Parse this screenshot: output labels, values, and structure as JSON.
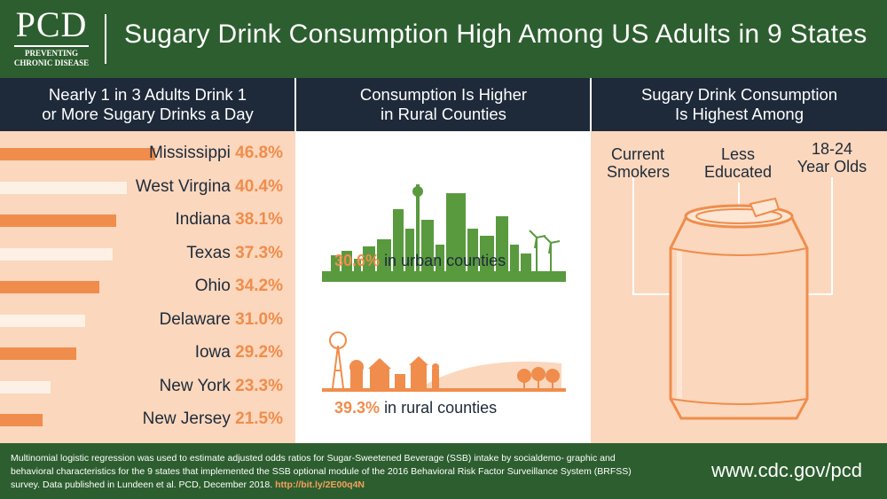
{
  "header": {
    "logo_big": "PCD",
    "logo_line1": "PREVENTING",
    "logo_line2": "CHRONIC DISEASE",
    "title": "Sugary Drink Consumption High Among US Adults in 9 States"
  },
  "columns": {
    "left_line1": "Nearly 1 in 3 Adults Drink 1",
    "left_line2": "or More Sugary Drinks a Day",
    "mid_line1": "Consumption Is Higher",
    "mid_line2": "in Rural Counties",
    "right_line1": "Sugary Drink Consumption",
    "right_line2": "Is Highest Among"
  },
  "chart_data": {
    "type": "bar",
    "title": "Nearly 1 in 3 Adults Drink 1 or More Sugary Drinks a Day",
    "categories": [
      "Mississippi",
      "West Virgina",
      "Indiana",
      "Texas",
      "Ohio",
      "Delaware",
      "Iowa",
      "New York",
      "New Jersey"
    ],
    "values": [
      46.8,
      40.4,
      38.1,
      37.3,
      34.2,
      31.0,
      29.2,
      23.3,
      21.5
    ],
    "labels": [
      "46.8%",
      "40.4%",
      "38.1%",
      "37.3%",
      "34.2%",
      "31.0%",
      "29.2%",
      "23.3%",
      "21.5%"
    ],
    "unit": "%"
  },
  "middle": {
    "urban_pct": "30.6%",
    "urban_text": "in urban counties",
    "rural_pct": "39.3%",
    "rural_text": "in rural counties"
  },
  "right": {
    "group1_line1": "Current",
    "group1_line2": "Smokers",
    "group2_line1": "Less",
    "group2_line2": "Educated",
    "group3_line1": "18-24",
    "group3_line2": "Year Olds"
  },
  "footer": {
    "text": "Multinomial logistic regression was used to estimate adjusted odds ratios for Sugar-Sweetened Beverage (SSB) intake by socialdemo- graphic and behavioral characteristics for the 9 states that implemented the SSB optional module of the 2016 Behavioral Risk Factor Surveillance System (BRFSS) survey. Data published in Lundeen et al. PCD, December 2018.",
    "link": "http://bit.ly/2E00q4N",
    "url": "www.cdc.gov/pcd"
  },
  "colors": {
    "green": "#2d5e2f",
    "navy": "#1e2a3a",
    "orange": "#f08c4c",
    "peach": "#fbd8bd",
    "cream": "#fdf1e6",
    "skyline": "#5a9a3e"
  }
}
